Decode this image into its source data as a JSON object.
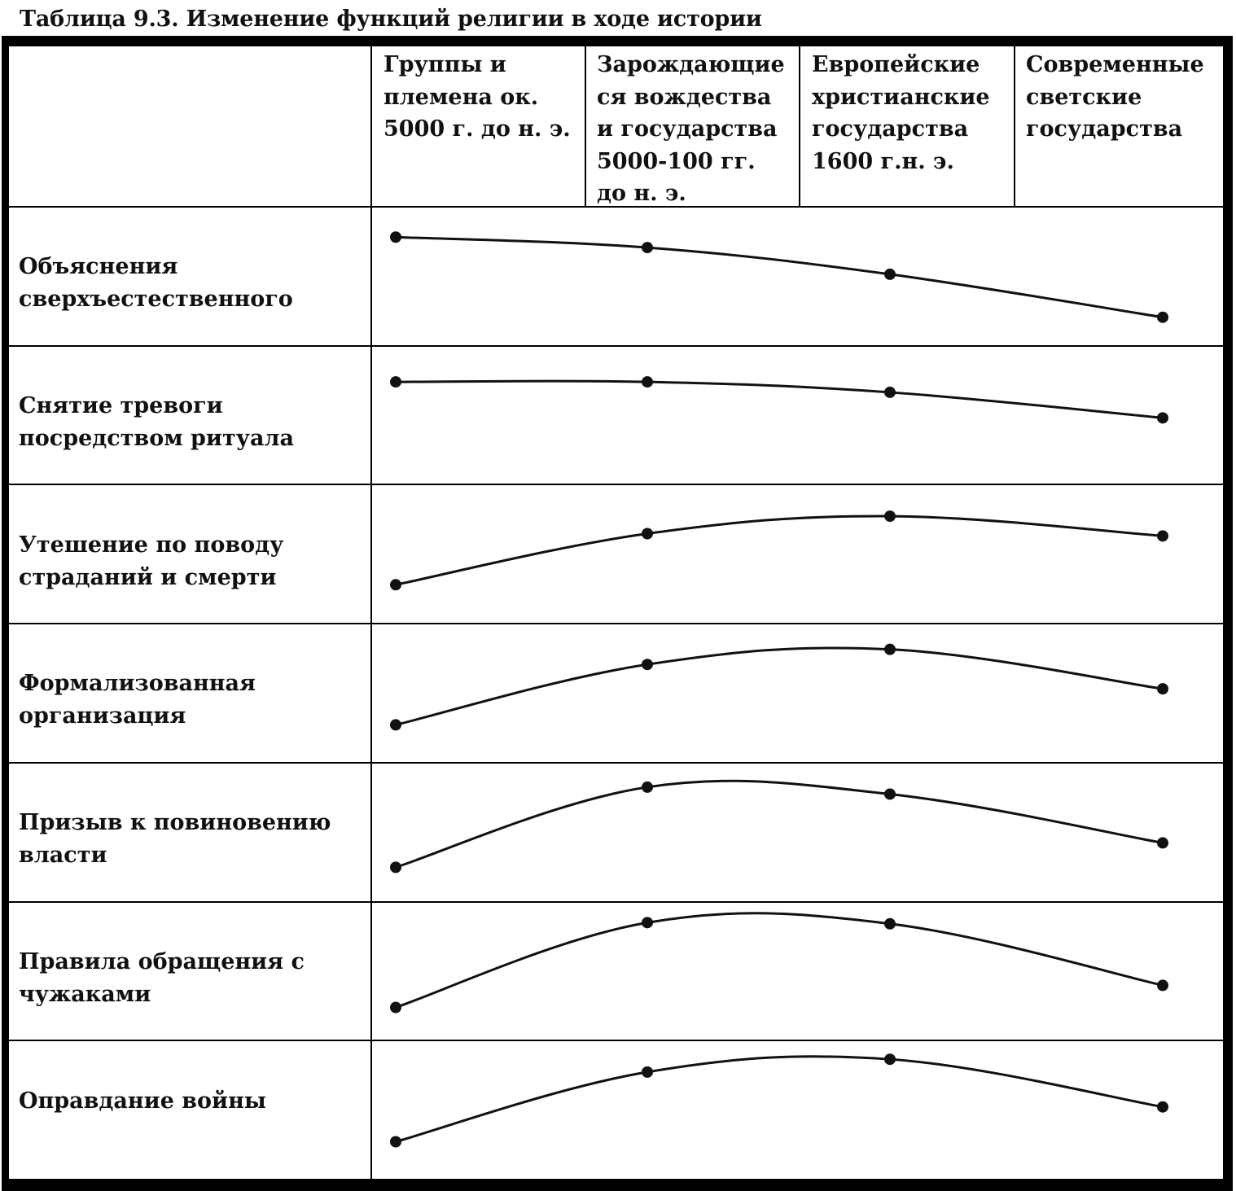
{
  "title": "Таблица 9.3. Изменение функций религии в ходе истории",
  "columns": [
    {
      "id": "c1",
      "label": "Группы и\nплемена ок.\n5000 г. до н. э."
    },
    {
      "id": "c2",
      "label": "Зарождающие\nся вождества\nи государства\n5000-100 гг.\nдо н. э."
    },
    {
      "id": "c3",
      "label": "Европейские\nхристианские\nгосударства\n1600 г.н. э."
    },
    {
      "id": "c4",
      "label": "Современные\nсветские\nгосударства"
    }
  ],
  "rows": [
    {
      "label": "Объяснения\nсверхъестественного",
      "points": [
        {
          "col": "c1",
          "level": 0.83
        },
        {
          "col": "c2",
          "level": 0.74
        },
        {
          "col": "c3",
          "level": 0.51
        },
        {
          "col": "c4",
          "level": 0.14
        }
      ]
    },
    {
      "label": "Снятие тревоги\nпосредством ритуала",
      "points": [
        {
          "col": "c1",
          "level": 0.78
        },
        {
          "col": "c2",
          "level": 0.78
        },
        {
          "col": "c3",
          "level": 0.69
        },
        {
          "col": "c4",
          "level": 0.47
        }
      ]
    },
    {
      "label": "Утешение по поводу\nстраданий и смерти",
      "points": [
        {
          "col": "c1",
          "level": 0.23
        },
        {
          "col": "c2",
          "level": 0.67
        },
        {
          "col": "c3",
          "level": 0.82
        },
        {
          "col": "c4",
          "level": 0.65
        }
      ]
    },
    {
      "label": "Формализованная\nорганизация",
      "points": [
        {
          "col": "c1",
          "level": 0.22
        },
        {
          "col": "c2",
          "level": 0.74
        },
        {
          "col": "c3",
          "level": 0.87
        },
        {
          "col": "c4",
          "level": 0.53
        }
      ]
    },
    {
      "label": "Призыв к повиновению\nвласти",
      "points": [
        {
          "col": "c1",
          "level": 0.19
        },
        {
          "col": "c2",
          "level": 0.88
        },
        {
          "col": "c3",
          "level": 0.82
        },
        {
          "col": "c4",
          "level": 0.4
        }
      ]
    },
    {
      "label": "Правила обращения с\nчужаками",
      "points": [
        {
          "col": "c1",
          "level": 0.18
        },
        {
          "col": "c2",
          "level": 0.91
        },
        {
          "col": "c3",
          "level": 0.9
        },
        {
          "col": "c4",
          "level": 0.37
        }
      ]
    },
    {
      "label": "Оправдание войны",
      "points": [
        {
          "col": "c1",
          "level": 0.22
        },
        {
          "col": "c2",
          "level": 0.82
        },
        {
          "col": "c3",
          "level": 0.93
        },
        {
          "col": "c4",
          "level": 0.52
        }
      ]
    }
  ],
  "colors": {
    "ink": "#111111",
    "paper": "#ffffff",
    "border": "#000000"
  }
}
